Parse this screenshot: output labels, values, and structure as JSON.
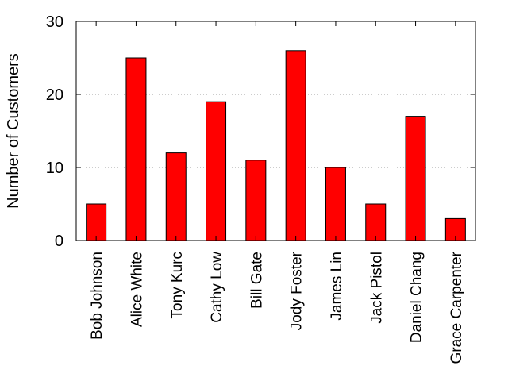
{
  "chart_data": {
    "type": "bar",
    "title": "",
    "xlabel": "",
    "ylabel": "Number of Customers",
    "categories": [
      "Bob Johnson",
      "Alice White",
      "Tony Kurc",
      "Cathy Low",
      "Bill Gate",
      "Jody Foster",
      "James Lin",
      "Jack Pistol",
      "Daniel Chang",
      "Grace Carpenter"
    ],
    "values": [
      5,
      25,
      12,
      19,
      11,
      26,
      10,
      5,
      17,
      3
    ],
    "ylim": [
      0,
      30
    ],
    "yticks": [
      0,
      10,
      20,
      30
    ],
    "grid": "horizontal dotted",
    "bar_color": "#ff0000",
    "legend": "none"
  }
}
